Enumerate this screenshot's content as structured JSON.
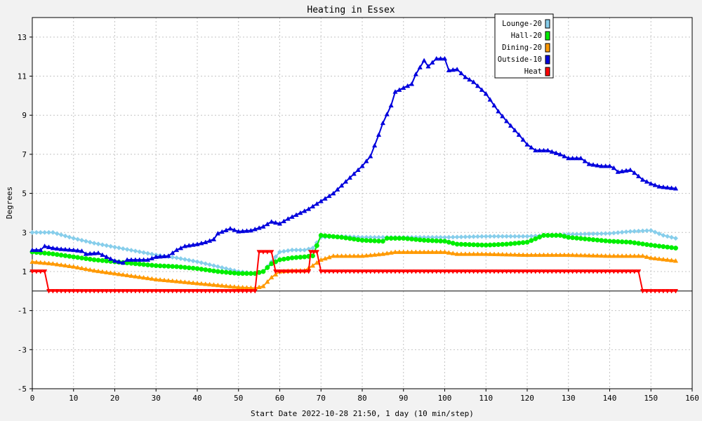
{
  "chart_data": {
    "type": "line",
    "title": "Heating in Essex",
    "xlabel": "Start Date 2022-10-28 21:50, 1 day (10 min/step)",
    "ylabel": "Degrees",
    "xlim": [
      0,
      160
    ],
    "ylim": [
      -5,
      14
    ],
    "xticks": [
      0,
      10,
      20,
      30,
      40,
      50,
      60,
      70,
      80,
      90,
      100,
      110,
      120,
      130,
      140,
      150,
      160
    ],
    "yticks": [
      -5,
      -3,
      -1,
      1,
      3,
      5,
      7,
      9,
      11,
      13
    ],
    "grid": true,
    "legend_position": "top-right",
    "series": [
      {
        "name": "Lounge-20",
        "color": "#87ceeb",
        "marker": "diamond",
        "points": [
          [
            0,
            3.0
          ],
          [
            5,
            3.0
          ],
          [
            10,
            2.7
          ],
          [
            15,
            2.45
          ],
          [
            20,
            2.25
          ],
          [
            25,
            2.05
          ],
          [
            30,
            1.85
          ],
          [
            35,
            1.7
          ],
          [
            40,
            1.5
          ],
          [
            45,
            1.25
          ],
          [
            50,
            1.0
          ],
          [
            54,
            0.9
          ],
          [
            56,
            1.0
          ],
          [
            58,
            1.5
          ],
          [
            60,
            2.0
          ],
          [
            63,
            2.1
          ],
          [
            66,
            2.1
          ],
          [
            68,
            2.2
          ],
          [
            70,
            2.75
          ],
          [
            75,
            2.8
          ],
          [
            80,
            2.75
          ],
          [
            90,
            2.75
          ],
          [
            100,
            2.75
          ],
          [
            110,
            2.8
          ],
          [
            120,
            2.8
          ],
          [
            130,
            2.9
          ],
          [
            140,
            2.95
          ],
          [
            145,
            3.05
          ],
          [
            150,
            3.1
          ],
          [
            153,
            2.85
          ],
          [
            156,
            2.7
          ]
        ]
      },
      {
        "name": "Hall-20",
        "color": "#00ee00",
        "marker": "circle",
        "points": [
          [
            0,
            2.0
          ],
          [
            5,
            1.9
          ],
          [
            10,
            1.75
          ],
          [
            15,
            1.6
          ],
          [
            20,
            1.5
          ],
          [
            25,
            1.4
          ],
          [
            30,
            1.3
          ],
          [
            35,
            1.25
          ],
          [
            40,
            1.15
          ],
          [
            45,
            1.0
          ],
          [
            50,
            0.9
          ],
          [
            54,
            0.9
          ],
          [
            56,
            1.0
          ],
          [
            58,
            1.4
          ],
          [
            60,
            1.6
          ],
          [
            63,
            1.7
          ],
          [
            66,
            1.75
          ],
          [
            68,
            1.8
          ],
          [
            70,
            2.85
          ],
          [
            75,
            2.75
          ],
          [
            80,
            2.6
          ],
          [
            85,
            2.55
          ],
          [
            86,
            2.7
          ],
          [
            90,
            2.7
          ],
          [
            95,
            2.6
          ],
          [
            100,
            2.55
          ],
          [
            103,
            2.4
          ],
          [
            110,
            2.35
          ],
          [
            115,
            2.4
          ],
          [
            120,
            2.5
          ],
          [
            124,
            2.85
          ],
          [
            128,
            2.85
          ],
          [
            130,
            2.75
          ],
          [
            135,
            2.65
          ],
          [
            140,
            2.55
          ],
          [
            145,
            2.5
          ],
          [
            150,
            2.35
          ],
          [
            156,
            2.2
          ]
        ]
      },
      {
        "name": "Dining-20",
        "color": "#ff9900",
        "marker": "triangle",
        "points": [
          [
            0,
            1.5
          ],
          [
            5,
            1.4
          ],
          [
            10,
            1.25
          ],
          [
            15,
            1.05
          ],
          [
            20,
            0.9
          ],
          [
            25,
            0.75
          ],
          [
            30,
            0.6
          ],
          [
            35,
            0.5
          ],
          [
            40,
            0.4
          ],
          [
            45,
            0.3
          ],
          [
            50,
            0.2
          ],
          [
            54,
            0.15
          ],
          [
            56,
            0.25
          ],
          [
            58,
            0.7
          ],
          [
            60,
            1.0
          ],
          [
            63,
            1.05
          ],
          [
            66,
            1.05
          ],
          [
            68,
            1.3
          ],
          [
            70,
            1.6
          ],
          [
            73,
            1.8
          ],
          [
            80,
            1.8
          ],
          [
            85,
            1.9
          ],
          [
            88,
            2.0
          ],
          [
            95,
            2.0
          ],
          [
            100,
            2.0
          ],
          [
            103,
            1.9
          ],
          [
            110,
            1.9
          ],
          [
            120,
            1.85
          ],
          [
            130,
            1.85
          ],
          [
            140,
            1.8
          ],
          [
            148,
            1.8
          ],
          [
            150,
            1.7
          ],
          [
            156,
            1.55
          ]
        ]
      },
      {
        "name": "Outside-10",
        "color": "#0000dd",
        "marker": "triangle",
        "points": [
          [
            0,
            2.1
          ],
          [
            2,
            2.1
          ],
          [
            3,
            2.3
          ],
          [
            5,
            2.2
          ],
          [
            7,
            2.15
          ],
          [
            10,
            2.1
          ],
          [
            12,
            2.05
          ],
          [
            13,
            1.9
          ],
          [
            16,
            1.95
          ],
          [
            18,
            1.75
          ],
          [
            20,
            1.55
          ],
          [
            22,
            1.45
          ],
          [
            23,
            1.6
          ],
          [
            28,
            1.6
          ],
          [
            30,
            1.75
          ],
          [
            33,
            1.8
          ],
          [
            35,
            2.1
          ],
          [
            37,
            2.3
          ],
          [
            40,
            2.4
          ],
          [
            42,
            2.5
          ],
          [
            44,
            2.65
          ],
          [
            45,
            2.95
          ],
          [
            48,
            3.2
          ],
          [
            50,
            3.05
          ],
          [
            53,
            3.1
          ],
          [
            56,
            3.3
          ],
          [
            58,
            3.55
          ],
          [
            60,
            3.45
          ],
          [
            62,
            3.7
          ],
          [
            65,
            4.0
          ],
          [
            67,
            4.2
          ],
          [
            70,
            4.6
          ],
          [
            73,
            5.0
          ],
          [
            75,
            5.4
          ],
          [
            78,
            6.0
          ],
          [
            80,
            6.4
          ],
          [
            82,
            6.9
          ],
          [
            84,
            8.0
          ],
          [
            85,
            8.6
          ],
          [
            87,
            9.5
          ],
          [
            88,
            10.2
          ],
          [
            90,
            10.4
          ],
          [
            92,
            10.6
          ],
          [
            93,
            11.1
          ],
          [
            95,
            11.8
          ],
          [
            96,
            11.5
          ],
          [
            98,
            11.9
          ],
          [
            100,
            11.9
          ],
          [
            101,
            11.3
          ],
          [
            103,
            11.35
          ],
          [
            105,
            10.95
          ],
          [
            107,
            10.7
          ],
          [
            110,
            10.1
          ],
          [
            113,
            9.2
          ],
          [
            115,
            8.7
          ],
          [
            118,
            8.0
          ],
          [
            120,
            7.5
          ],
          [
            122,
            7.2
          ],
          [
            125,
            7.2
          ],
          [
            128,
            7.0
          ],
          [
            130,
            6.8
          ],
          [
            133,
            6.8
          ],
          [
            135,
            6.5
          ],
          [
            138,
            6.4
          ],
          [
            140,
            6.4
          ],
          [
            141,
            6.3
          ],
          [
            142,
            6.1
          ],
          [
            145,
            6.2
          ],
          [
            146,
            6.05
          ],
          [
            148,
            5.7
          ],
          [
            150,
            5.5
          ],
          [
            152,
            5.35
          ],
          [
            154,
            5.3
          ],
          [
            156,
            5.25
          ]
        ]
      },
      {
        "name": "Heat",
        "color": "#ff0000",
        "marker": "triangle-down",
        "points": [
          [
            0,
            1.0
          ],
          [
            3,
            1.0
          ],
          [
            4,
            0.0
          ],
          [
            54,
            0.0
          ],
          [
            55,
            2.0
          ],
          [
            58,
            2.0
          ],
          [
            59,
            1.0
          ],
          [
            67,
            1.0
          ],
          [
            67.5,
            2.0
          ],
          [
            69,
            2.0
          ],
          [
            70,
            1.0
          ],
          [
            147,
            1.0
          ],
          [
            148,
            0.0
          ],
          [
            156,
            0.0
          ]
        ]
      }
    ]
  }
}
